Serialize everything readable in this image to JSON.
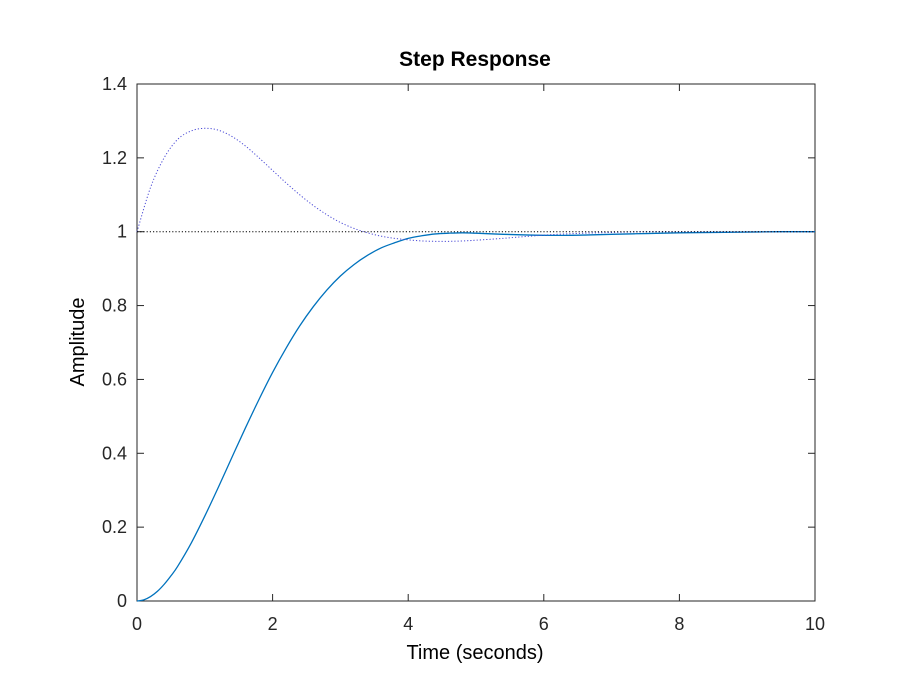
{
  "chart_data": {
    "type": "line",
    "title": "Step Response",
    "xlabel": "Time (seconds)",
    "ylabel": "Amplitude",
    "xlim": [
      0,
      10
    ],
    "ylim": [
      0,
      1.4
    ],
    "xticks": [
      "0",
      "2",
      "4",
      "6",
      "8",
      "10"
    ],
    "yticks": [
      "0",
      "0.2",
      "0.4",
      "0.6",
      "0.8",
      "1",
      "1.2",
      "1.4"
    ],
    "grid": false,
    "series": [
      {
        "style": "solid",
        "color": "#0072bd",
        "x": [
          0,
          0.1,
          0.2,
          0.3,
          0.4,
          0.5,
          0.6,
          0.8,
          1.0,
          1.2,
          1.4,
          1.6,
          1.8,
          2.0,
          2.2,
          2.4,
          2.6,
          2.8,
          3.0,
          3.2,
          3.4,
          3.6,
          3.8,
          4.0,
          4.2,
          4.4,
          4.6,
          4.8,
          5.0,
          5.4,
          5.8,
          6.2,
          6.6,
          7.0,
          7.5,
          8.0,
          8.5,
          9.0,
          9.5,
          10.0
        ],
        "y": [
          0,
          0.003,
          0.012,
          0.026,
          0.045,
          0.068,
          0.094,
          0.157,
          0.23,
          0.308,
          0.389,
          0.469,
          0.546,
          0.619,
          0.685,
          0.745,
          0.797,
          0.842,
          0.88,
          0.911,
          0.936,
          0.956,
          0.97,
          0.982,
          0.989,
          0.994,
          0.996,
          0.997,
          0.996,
          0.993,
          0.991,
          0.99,
          0.991,
          0.993,
          0.995,
          0.997,
          0.998,
          0.999,
          1.0,
          1.0
        ]
      },
      {
        "style": "dotted",
        "color": "#4a4ad6",
        "x": [
          0,
          0.2,
          0.4,
          0.6,
          0.8,
          1.0,
          1.2,
          1.4,
          1.6,
          1.8,
          2.0,
          2.2,
          2.4,
          2.6,
          2.8,
          3.0,
          3.2,
          3.4,
          3.6,
          3.8,
          4.0,
          4.2,
          4.4,
          4.6,
          4.8,
          5.0,
          5.4,
          5.8,
          6.2,
          6.6,
          7.0,
          7.5,
          8.0,
          8.5,
          9.0,
          9.5,
          10.0
        ],
        "y": [
          1.0,
          1.12,
          1.2,
          1.25,
          1.273,
          1.28,
          1.275,
          1.258,
          1.232,
          1.2,
          1.166,
          1.132,
          1.1,
          1.071,
          1.046,
          1.025,
          1.009,
          0.997,
          0.988,
          0.982,
          0.978,
          0.975,
          0.974,
          0.974,
          0.975,
          0.977,
          0.982,
          0.988,
          0.993,
          0.996,
          0.998,
          1.0,
          1.0,
          1.0,
          1.0,
          1.0,
          1.0
        ]
      },
      {
        "style": "dotted",
        "color": "#000000",
        "x": [
          0,
          10
        ],
        "y": [
          1,
          1
        ]
      }
    ]
  }
}
